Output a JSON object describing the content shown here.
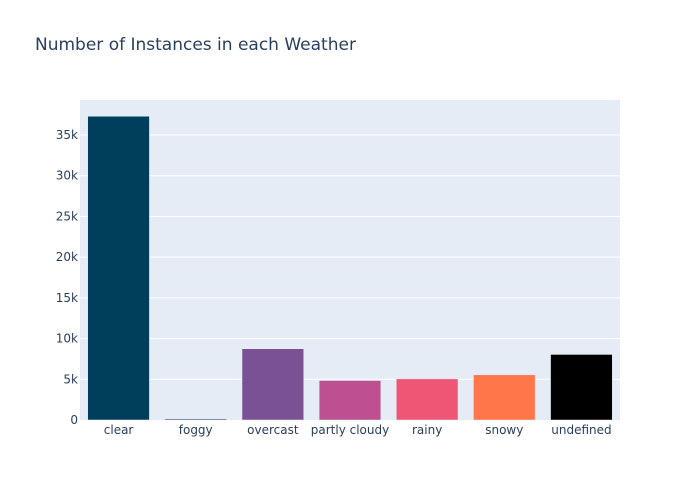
{
  "chart_data": {
    "type": "bar",
    "title": "Number of Instances in each Weather",
    "xlabel": "",
    "ylabel": "",
    "categories": [
      "clear",
      "foggy",
      "overcast",
      "partly cloudy",
      "rainy",
      "snowy",
      "undefined"
    ],
    "values": [
      37300,
      130,
      8750,
      4850,
      5050,
      5550,
      8050
    ],
    "colors": [
      "#003f5c",
      "#2f4b7c",
      "#7a5195",
      "#bc5090",
      "#ef5675",
      "#ff764a",
      "#000000"
    ],
    "ylim": [
      0,
      39300
    ],
    "yticks": [
      0,
      5000,
      10000,
      15000,
      20000,
      25000,
      30000,
      35000
    ],
    "ytick_labels": [
      "0",
      "5k",
      "10k",
      "15k",
      "20k",
      "25k",
      "30k",
      "35k"
    ],
    "grid": true,
    "plot_background": "#e5ecf6"
  }
}
